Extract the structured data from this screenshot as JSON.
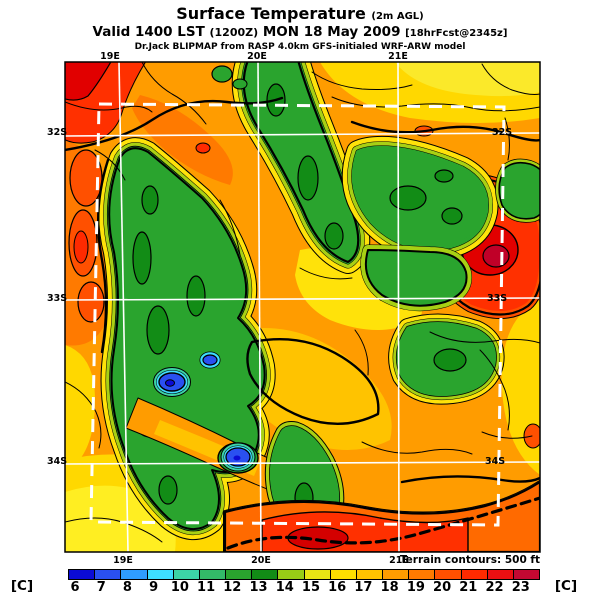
{
  "header": {
    "title": "Surface Temperature",
    "title_suffix": "(2m AGL)",
    "valid_prefix": "Valid 1400 LST",
    "valid_z": "(1200Z)",
    "valid_date": "MON 18 May 2009",
    "valid_fcst": "[18hrFcst@2345z]",
    "model_line": "Dr.Jack BLIPMAP from RASP 4.0km GFS-initialed WRF-ARW model"
  },
  "map": {
    "top_labels": [
      "19E",
      "20E",
      "21E"
    ],
    "bottom_labels": [
      "19E",
      "20E",
      "21E"
    ],
    "left_labels": [
      "32S",
      "33S",
      "34S"
    ],
    "right_labels": [
      "32S",
      "33S",
      "34S"
    ],
    "terrain_note": "Terrain contours: 500 ft",
    "grid_color": "#ffffff",
    "contour_color": "#000000",
    "nest_boundary_style": "white-dashed"
  },
  "colorbar": {
    "units_left": "[C]",
    "units_right": "[C]",
    "ticks": [
      6,
      7,
      8,
      9,
      10,
      11,
      12,
      13,
      14,
      15,
      16,
      17,
      18,
      19,
      20,
      21,
      22,
      23
    ],
    "colors": [
      "#0b0bd5",
      "#2a50f0",
      "#2f9dff",
      "#3edeff",
      "#3cd4a6",
      "#33ba68",
      "#2aa42e",
      "#128c16",
      "#98cc16",
      "#e9e414",
      "#fede00",
      "#ffc300",
      "#ff9c00",
      "#ff7a00",
      "#ff5000",
      "#ff2a00",
      "#ea0f12",
      "#c30832"
    ]
  }
}
